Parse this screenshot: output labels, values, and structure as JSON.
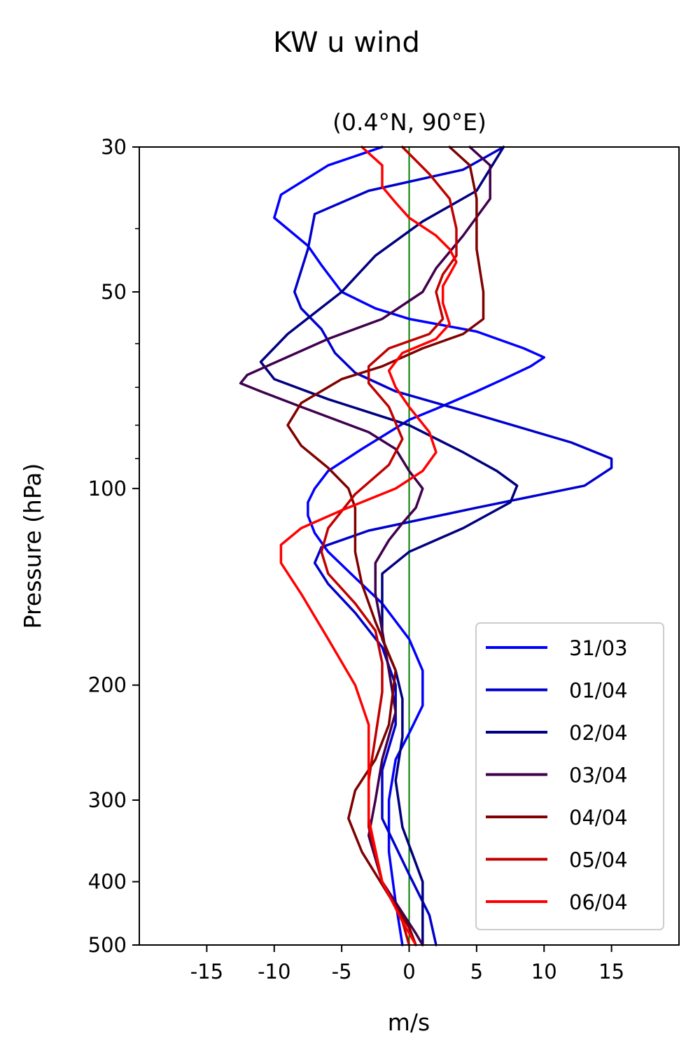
{
  "chart_data": {
    "type": "line",
    "title": "KW u wind",
    "subtitle": "(0.4°N, 90°E)",
    "xlabel": "m/s",
    "ylabel": "Pressure (hPa)",
    "xlim": [
      -20,
      20
    ],
    "ylim": [
      500,
      30
    ],
    "yscale": "log",
    "x_ticks": [
      -15,
      -10,
      -5,
      0,
      5,
      10,
      15
    ],
    "y_ticks": [
      30,
      50,
      100,
      200,
      300,
      400,
      500
    ],
    "y_minor_ticks": [
      40,
      60,
      70,
      80,
      90
    ],
    "reference_line": {
      "x": 0,
      "color": "#008000"
    },
    "legend_position": "lower-right",
    "series": [
      {
        "name": "31/03",
        "color": "#0000ff",
        "points": [
          [
            -2,
            30
          ],
          [
            -6,
            32
          ],
          [
            -9.5,
            35.5
          ],
          [
            -10,
            38.5
          ],
          [
            -7.5,
            42.5
          ],
          [
            -6.5,
            45.5
          ],
          [
            -5,
            50
          ],
          [
            -2.5,
            53
          ],
          [
            0,
            55
          ],
          [
            5,
            57.5
          ],
          [
            8.5,
            61
          ],
          [
            10,
            63
          ],
          [
            9,
            65
          ],
          [
            7,
            68
          ],
          [
            5,
            71
          ],
          [
            2,
            75.5
          ],
          [
            0,
            78.5
          ],
          [
            -3.5,
            87
          ],
          [
            -6,
            94
          ],
          [
            -7,
            100
          ],
          [
            -7.5,
            105
          ],
          [
            -7.5,
            110
          ],
          [
            -7,
            117
          ],
          [
            -6,
            125
          ],
          [
            -4,
            137
          ],
          [
            -2,
            150
          ],
          [
            0,
            170
          ],
          [
            1,
            190
          ],
          [
            1,
            215
          ],
          [
            0,
            237
          ],
          [
            -1,
            260
          ],
          [
            -1.5,
            300
          ],
          [
            -1.5,
            360
          ],
          [
            -1,
            430
          ],
          [
            -0.5,
            500
          ]
        ]
      },
      {
        "name": "01/04",
        "color": "#0000cd",
        "points": [
          [
            7,
            30
          ],
          [
            4,
            32.5
          ],
          [
            -3,
            35
          ],
          [
            -7,
            38
          ],
          [
            -7.5,
            43
          ],
          [
            -8.5,
            50
          ],
          [
            -8,
            53
          ],
          [
            -6.5,
            57
          ],
          [
            -5.5,
            62
          ],
          [
            -4,
            66.5
          ],
          [
            -1,
            71
          ],
          [
            4,
            76
          ],
          [
            12,
            85
          ],
          [
            15,
            90
          ],
          [
            15,
            93
          ],
          [
            13,
            99
          ],
          [
            5,
            107
          ],
          [
            -3,
            116
          ],
          [
            -6.5,
            123
          ],
          [
            -7,
            130
          ],
          [
            -6,
            140
          ],
          [
            -4,
            155
          ],
          [
            -2,
            175
          ],
          [
            -1,
            200
          ],
          [
            -1,
            230
          ],
          [
            -2,
            270
          ],
          [
            -2,
            320
          ],
          [
            0,
            390
          ],
          [
            1.5,
            450
          ],
          [
            2,
            500
          ]
        ]
      },
      {
        "name": "02/04",
        "color": "#000080",
        "points": [
          [
            7,
            30
          ],
          [
            5,
            35
          ],
          [
            1,
            39
          ],
          [
            -2.5,
            44
          ],
          [
            -5,
            50
          ],
          [
            -9,
            58
          ],
          [
            -11,
            64
          ],
          [
            -10,
            68
          ],
          [
            -6,
            73
          ],
          [
            0,
            80
          ],
          [
            4,
            88
          ],
          [
            6.5,
            94
          ],
          [
            8,
            99
          ],
          [
            7.5,
            105
          ],
          [
            4,
            115
          ],
          [
            0,
            125
          ],
          [
            -2,
            135
          ],
          [
            -2,
            150
          ],
          [
            -2,
            170
          ],
          [
            -1,
            190
          ],
          [
            -0.5,
            210
          ],
          [
            -0.5,
            240
          ],
          [
            -1,
            280
          ],
          [
            -0.5,
            330
          ],
          [
            1,
            400
          ],
          [
            1,
            450
          ],
          [
            1,
            500
          ]
        ]
      },
      {
        "name": "03/04",
        "color": "#40004d",
        "points": [
          [
            4.5,
            30
          ],
          [
            6,
            32
          ],
          [
            6,
            36
          ],
          [
            4,
            41
          ],
          [
            2,
            46
          ],
          [
            1,
            50
          ],
          [
            -2,
            55
          ],
          [
            -6,
            59
          ],
          [
            -12,
            67
          ],
          [
            -12.5,
            69
          ],
          [
            -11,
            71
          ],
          [
            -8,
            75
          ],
          [
            -3,
            82
          ],
          [
            -1,
            87
          ],
          [
            0,
            94
          ],
          [
            1,
            100
          ],
          [
            0.5,
            107
          ],
          [
            -0.5,
            113
          ],
          [
            -1.5,
            120
          ],
          [
            -2.5,
            130
          ],
          [
            -2.5,
            145
          ],
          [
            -2,
            165
          ],
          [
            -1.5,
            190
          ],
          [
            -1,
            220
          ],
          [
            -2,
            260
          ],
          [
            -2.5,
            300
          ],
          [
            -3,
            340
          ],
          [
            -2,
            400
          ],
          [
            0.5,
            480
          ],
          [
            1,
            500
          ]
        ]
      },
      {
        "name": "04/04",
        "color": "#800000",
        "points": [
          [
            3,
            30
          ],
          [
            4.5,
            32
          ],
          [
            5,
            36
          ],
          [
            5,
            43
          ],
          [
            5.5,
            50
          ],
          [
            5.5,
            55
          ],
          [
            4,
            58
          ],
          [
            1,
            61
          ],
          [
            -2,
            65
          ],
          [
            -5,
            68
          ],
          [
            -8,
            74
          ],
          [
            -9,
            80
          ],
          [
            -8,
            86
          ],
          [
            -6,
            93
          ],
          [
            -4.5,
            100
          ],
          [
            -4,
            107
          ],
          [
            -4,
            115
          ],
          [
            -4,
            125
          ],
          [
            -3.5,
            140
          ],
          [
            -2.5,
            160
          ],
          [
            -1,
            190
          ],
          [
            -1.5,
            230
          ],
          [
            -2.5,
            260
          ],
          [
            -4,
            290
          ],
          [
            -4.5,
            320
          ],
          [
            -3.5,
            360
          ],
          [
            -1.5,
            420
          ],
          [
            0,
            470
          ],
          [
            0.5,
            500
          ]
        ]
      },
      {
        "name": "05/04",
        "color": "#c00000",
        "points": [
          [
            -0.5,
            30
          ],
          [
            1.5,
            33
          ],
          [
            3,
            36
          ],
          [
            3.5,
            40
          ],
          [
            3.5,
            44
          ],
          [
            2.5,
            47
          ],
          [
            2,
            50
          ],
          [
            2.5,
            55
          ],
          [
            1.5,
            58
          ],
          [
            -1.5,
            61
          ],
          [
            -3,
            65
          ],
          [
            -3,
            69
          ],
          [
            -1.5,
            75
          ],
          [
            -0.5,
            84
          ],
          [
            -1.5,
            92
          ],
          [
            -4,
            102
          ],
          [
            -6,
            115
          ],
          [
            -6.5,
            125
          ],
          [
            -6,
            135
          ],
          [
            -4,
            150
          ],
          [
            -2.5,
            165
          ],
          [
            -2,
            185
          ],
          [
            -2,
            205
          ],
          [
            -2.5,
            240
          ],
          [
            -3,
            280
          ],
          [
            -3,
            330
          ],
          [
            -2,
            400
          ],
          [
            -0.5,
            460
          ],
          [
            0,
            500
          ]
        ]
      },
      {
        "name": "06/04",
        "color": "#ff0000",
        "points": [
          [
            -3.5,
            30
          ],
          [
            -2,
            32
          ],
          [
            -2,
            34.5
          ],
          [
            -1,
            36.5
          ],
          [
            0,
            38.5
          ],
          [
            2,
            41
          ],
          [
            3,
            43
          ],
          [
            3.5,
            45
          ],
          [
            3,
            47
          ],
          [
            2.5,
            49
          ],
          [
            2.5,
            52
          ],
          [
            3,
            56
          ],
          [
            2,
            59
          ],
          [
            -0.5,
            62
          ],
          [
            -1.5,
            66
          ],
          [
            -1,
            70
          ],
          [
            0,
            75
          ],
          [
            1.5,
            82
          ],
          [
            2,
            88
          ],
          [
            1,
            94
          ],
          [
            -1,
            100
          ],
          [
            -5,
            108
          ],
          [
            -8,
            115
          ],
          [
            -9.5,
            122
          ],
          [
            -9.5,
            130
          ],
          [
            -8,
            145
          ],
          [
            -6,
            170
          ],
          [
            -4,
            200
          ],
          [
            -3,
            230
          ],
          [
            -3,
            270
          ],
          [
            -3,
            320
          ],
          [
            -2,
            400
          ],
          [
            -0.5,
            460
          ],
          [
            0.5,
            500
          ]
        ]
      }
    ]
  }
}
